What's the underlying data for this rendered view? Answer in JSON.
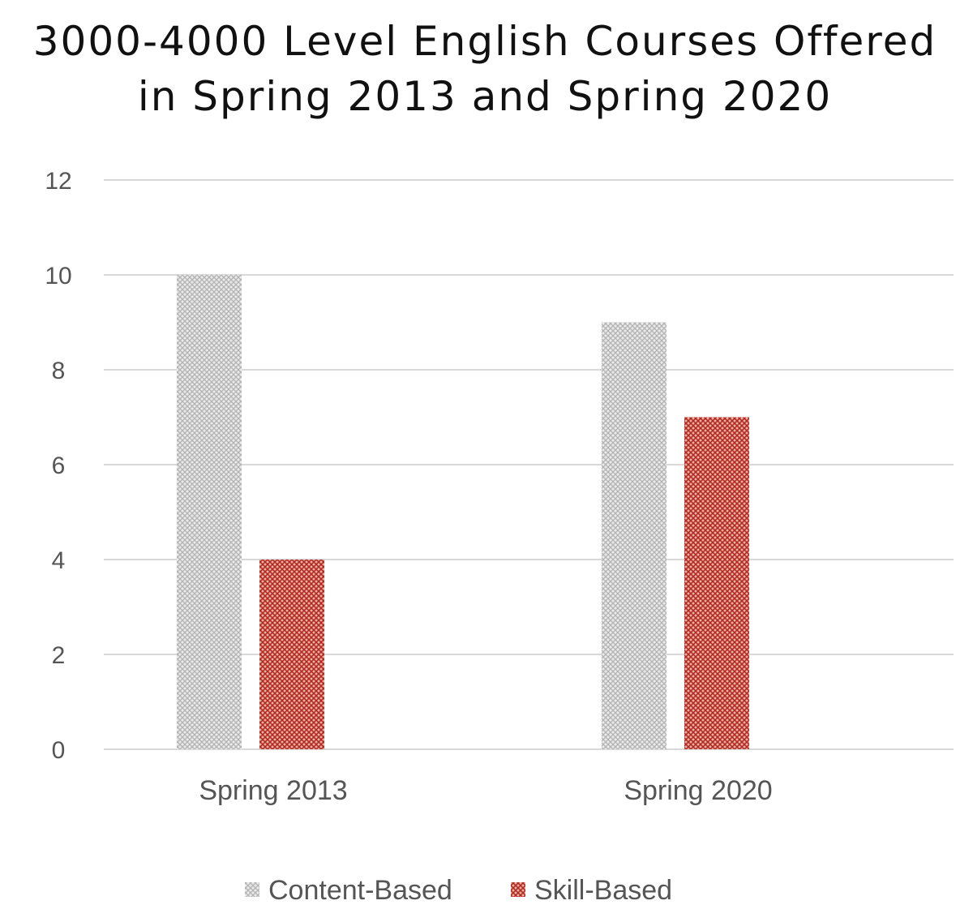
{
  "chart_data": {
    "type": "bar",
    "title_lines": [
      "3000-4000 Level English Courses Offered",
      "in Spring 2013 and Spring 2020"
    ],
    "categories": [
      "Spring 2013",
      "Spring 2020"
    ],
    "series": [
      {
        "name": "Content-Based",
        "values": [
          10,
          9
        ],
        "color": "#c8c8c8",
        "pattern": "crosshatch"
      },
      {
        "name": "Skill-Based",
        "values": [
          4,
          7
        ],
        "color": "#c0392b",
        "pattern": "crosshatch"
      }
    ],
    "xlabel": "",
    "ylabel": "",
    "ylim": [
      0,
      12
    ],
    "yticks": [
      "0",
      "2",
      "4",
      "6",
      "8",
      "10",
      "12"
    ],
    "grid": true,
    "legend_position": "bottom"
  }
}
